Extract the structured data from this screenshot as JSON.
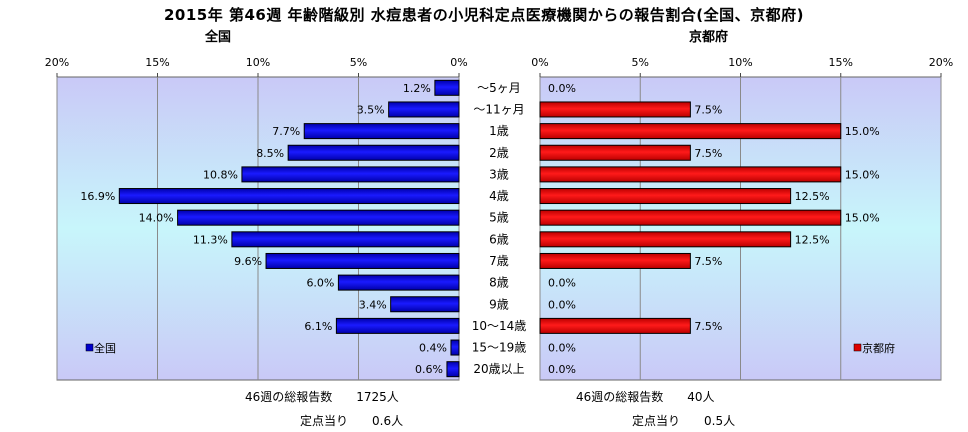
{
  "chart_data": {
    "type": "bar",
    "title": "2015年 第46週 年齢階級別 水痘患者の小児科定点医療機関からの報告割合(全国、京都府)",
    "categories": [
      "～5ヶ月",
      "～11ヶ月",
      "1歳",
      "2歳",
      "3歳",
      "4歳",
      "5歳",
      "6歳",
      "7歳",
      "8歳",
      "9歳",
      "10～14歳",
      "15～19歳",
      "20歳以上"
    ],
    "panels": [
      {
        "subtitle": "全国",
        "orientation": "horizontal-reversed",
        "xlim": [
          0,
          20
        ],
        "ticks": [
          "0%",
          "5%",
          "10%",
          "15%",
          "20%"
        ],
        "series": [
          {
            "name": "全国",
            "color": "#0000cc",
            "values": [
              1.2,
              3.5,
              7.7,
              8.5,
              10.8,
              16.9,
              14.0,
              11.3,
              9.6,
              6.0,
              3.4,
              6.1,
              0.4,
              0.6
            ],
            "labels": [
              "1.2%",
              "3.5%",
              "7.7%",
              "8.5%",
              "10.8%",
              "16.9%",
              "14.0%",
              "11.3%",
              "9.6%",
              "6.0%",
              "3.4%",
              "6.1%",
              "0.4%",
              "0.6%"
            ]
          }
        ],
        "legend_position": "bottom-left",
        "footer": {
          "total": "46週の総報告数　　1725人",
          "per_site": "定点当り　　0.6人"
        }
      },
      {
        "subtitle": "京都府",
        "orientation": "horizontal",
        "xlim": [
          0,
          20
        ],
        "ticks": [
          "0%",
          "5%",
          "10%",
          "15%",
          "20%"
        ],
        "series": [
          {
            "name": "京都府",
            "color": "#dd0000",
            "values": [
              0.0,
              7.5,
              15.0,
              7.5,
              15.0,
              12.5,
              15.0,
              12.5,
              7.5,
              0.0,
              0.0,
              7.5,
              0.0,
              0.0
            ],
            "labels": [
              "0.0%",
              "7.5%",
              "15.0%",
              "7.5%",
              "15.0%",
              "12.5%",
              "15.0%",
              "12.5%",
              "7.5%",
              "0.0%",
              "0.0%",
              "7.5%",
              "0.0%",
              "0.0%"
            ]
          }
        ],
        "legend_position": "bottom-right",
        "footer": {
          "total": "46週の総報告数　　40人",
          "per_site": "定点当り　　0.5人"
        }
      }
    ]
  }
}
